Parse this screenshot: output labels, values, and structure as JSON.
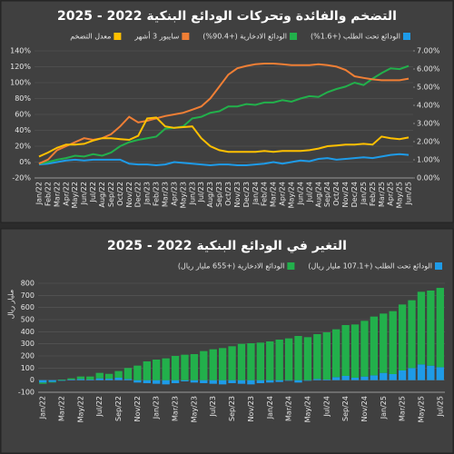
{
  "chart_data": [
    {
      "type": "line",
      "title": "التضخم والفائدة وتحركات الودائع البنكية 2022 - 2025",
      "categories": [
        "Jan/22",
        "Feb/22",
        "Mar/22",
        "Apr/22",
        "May/22",
        "Jun/22",
        "Jul/22",
        "Aug/22",
        "Sep/22",
        "Oct/22",
        "Nov/22",
        "Dec/22",
        "Jan/23",
        "Feb/23",
        "Mar/23",
        "Apr/23",
        "May/23",
        "Jun/23",
        "Jul/23",
        "Aug/23",
        "Sep/23",
        "Oct/23",
        "Nov/23",
        "Dec/23",
        "Jan/24",
        "Feb/24",
        "Mar/24",
        "Apr/24",
        "May/24",
        "Jun/24",
        "Jul/24",
        "Aug/24",
        "Sep/24",
        "Oct/24",
        "Nov/24",
        "Dec/24",
        "Jan/25",
        "Feb/25",
        "Mar/25",
        "Apr/25",
        "May/25",
        "Jun/25"
      ],
      "ylim": [
        -20,
        140
      ],
      "yticks": [
        {
          "value": -20,
          "label": "-20%"
        },
        {
          "value": 0,
          "label": "0%"
        },
        {
          "value": 20,
          "label": "20%"
        },
        {
          "value": 40,
          "label": "40%"
        },
        {
          "value": 60,
          "label": "60%"
        },
        {
          "value": 80,
          "label": "80%"
        },
        {
          "value": 100,
          "label": "100%"
        },
        {
          "value": 120,
          "label": "120%"
        },
        {
          "value": 140,
          "label": "140%"
        }
      ],
      "y2lim": [
        0,
        7
      ],
      "y2ticks": [
        {
          "value": 0,
          "label": "0.00%"
        },
        {
          "value": 1,
          "label": "1.00%"
        },
        {
          "value": 2,
          "label": "2.00%"
        },
        {
          "value": 3,
          "label": "3.00%"
        },
        {
          "value": 4,
          "label": "4.00%"
        },
        {
          "value": 5,
          "label": "5.00%"
        },
        {
          "value": 6,
          "label": "6.00%"
        },
        {
          "value": 7,
          "label": "7.00%"
        }
      ],
      "grid": true,
      "legend": "top",
      "series": [
        {
          "name": "الودائع تحت الطلب (+1.6%)",
          "color": "#1e9be8",
          "values": [
            -3,
            -2,
            0,
            2,
            3,
            2,
            3,
            3,
            3,
            3,
            -2,
            -3,
            -3,
            -4,
            -3,
            0,
            -1,
            -2,
            -3,
            -4,
            -3,
            -3,
            -4,
            -4,
            -3,
            -2,
            0,
            -2,
            0,
            2,
            1,
            4,
            5,
            3,
            4,
            5,
            6,
            5,
            7,
            9,
            10,
            9
          ]
        },
        {
          "name": "الودائع الادخارية (+90.4%)",
          "color": "#22b04b",
          "values": [
            -2,
            0,
            3,
            5,
            8,
            7,
            10,
            8,
            12,
            20,
            25,
            28,
            30,
            32,
            42,
            43,
            45,
            55,
            57,
            62,
            64,
            70,
            70,
            73,
            72,
            75,
            75,
            78,
            76,
            80,
            83,
            82,
            88,
            92,
            95,
            100,
            97,
            105,
            112,
            118,
            117,
            121
          ]
        },
        {
          "name": "سايبور 3 أشهر",
          "color": "#f07f35",
          "axis": "y2",
          "values": [
            0.79,
            1.01,
            1.53,
            1.75,
            1.97,
            2.19,
            2.1,
            2.19,
            2.41,
            2.84,
            3.37,
            3.06,
            3.15,
            3.28,
            3.41,
            3.5,
            3.59,
            3.76,
            3.94,
            4.38,
            5.03,
            5.69,
            6.04,
            6.17,
            6.26,
            6.3,
            6.3,
            6.26,
            6.21,
            6.21,
            6.21,
            6.26,
            6.21,
            6.13,
            5.95,
            5.6,
            5.51,
            5.43,
            5.38,
            5.38,
            5.38,
            5.47
          ]
        },
        {
          "name": "معدل التضخم",
          "color": "#ffc000",
          "axis": "y2",
          "values": [
            1.18,
            1.4,
            1.66,
            1.84,
            1.84,
            1.88,
            2.06,
            2.19,
            2.19,
            2.14,
            2.1,
            2.32,
            3.28,
            3.33,
            2.84,
            2.76,
            2.8,
            2.84,
            2.19,
            1.75,
            1.53,
            1.44,
            1.44,
            1.44,
            1.44,
            1.49,
            1.44,
            1.49,
            1.49,
            1.49,
            1.53,
            1.62,
            1.75,
            1.79,
            1.84,
            1.84,
            1.88,
            1.84,
            2.28,
            2.19,
            2.14,
            2.23
          ]
        }
      ]
    },
    {
      "type": "bar",
      "stacked": true,
      "title": "التغير في الودائع البنكية 2022 - 2025",
      "y_label": "مليار ريال",
      "categories": [
        "Jan/22",
        null,
        "Mar/22",
        null,
        "May/22",
        null,
        "Jul/22",
        null,
        "Sep/22",
        null,
        "Nov/22",
        null,
        "Jan/23",
        null,
        "Mar/23",
        null,
        "May/23",
        null,
        "Jul/23",
        null,
        "Sep/23",
        null,
        "Nov/23",
        null,
        "Jan/24",
        null,
        "Mar/24",
        null,
        "May/24",
        null,
        "Jul/24",
        null,
        "Sep/24",
        null,
        "Nov/24",
        null,
        "Jan/25",
        null,
        "Mar/25",
        null,
        "May/25",
        null,
        "Jul/25"
      ],
      "ylim": [
        -100,
        800
      ],
      "yticks": [
        -100,
        0,
        100,
        200,
        300,
        400,
        500,
        600,
        700,
        800
      ],
      "grid": true,
      "legend": "top",
      "series": [
        {
          "name": "الودائع تحت الطلب (+107.1 مليار ريال)",
          "color": "#1e9be8",
          "values": [
            -20,
            -15,
            -5,
            5,
            10,
            5,
            15,
            12,
            20,
            10,
            -20,
            -25,
            -30,
            -35,
            -25,
            -10,
            -20,
            -25,
            -30,
            -35,
            -25,
            -30,
            -35,
            -25,
            -20,
            -15,
            -5,
            -20,
            -5,
            10,
            5,
            25,
            35,
            20,
            30,
            40,
            60,
            50,
            80,
            100,
            130,
            120,
            107.1
          ]
        },
        {
          "name": "الودائع الادخارية (+655 مليار ريال)",
          "color": "#22b04b",
          "values": [
            -10,
            -5,
            5,
            10,
            20,
            25,
            45,
            40,
            55,
            90,
            120,
            155,
            170,
            180,
            200,
            210,
            215,
            240,
            255,
            265,
            280,
            300,
            305,
            310,
            320,
            335,
            345,
            365,
            355,
            370,
            390,
            395,
            420,
            440,
            460,
            485,
            490,
            520,
            545,
            560,
            600,
            620,
            655
          ]
        }
      ]
    }
  ]
}
